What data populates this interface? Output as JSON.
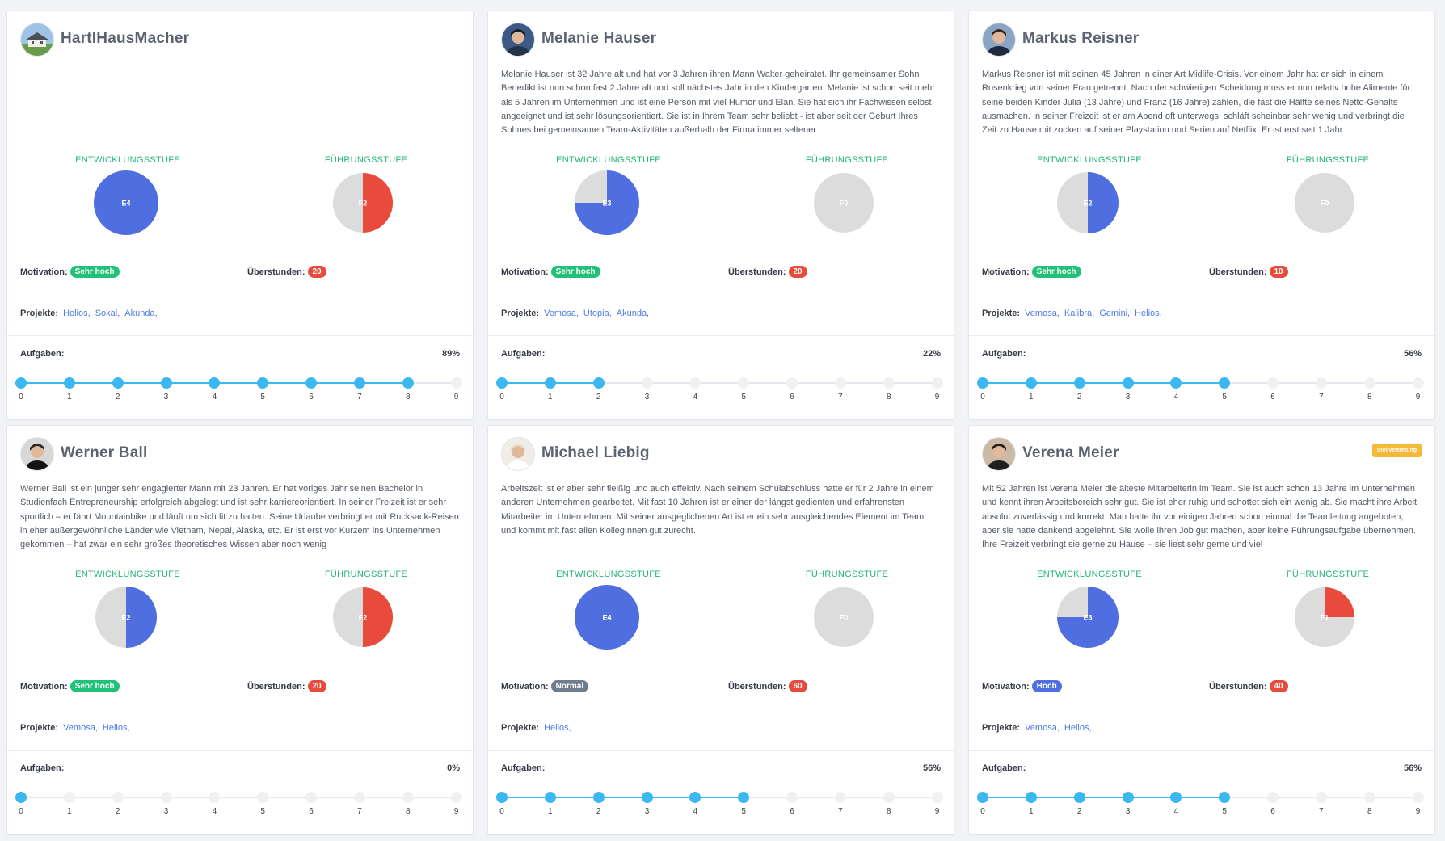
{
  "labels": {
    "entwicklung": "ENTWICKLUNGSSTUFE",
    "fuehrung": "FÜHRUNGSSTUFE",
    "motivation": "Motivation:",
    "ueberstunden": "Überstunden:",
    "projekte": "Projekte:",
    "aufgaben": "Aufgaben:"
  },
  "colors": {
    "entwicklung": "#4f6fe0",
    "fuehrung": "#e84a3b",
    "pie_bg": "#dcdcdc",
    "sehr_hoch": "#22c178",
    "hoch": "#4f6fe0",
    "normal": "#6f7d8e",
    "overtime": "#e84a3b"
  },
  "ticks": [
    "0",
    "1",
    "2",
    "3",
    "4",
    "5",
    "6",
    "7",
    "8",
    "9"
  ],
  "cards": [
    {
      "name": "HartlHausMacher",
      "avatar": "house-avatar",
      "description": "",
      "badge": "",
      "entwicklung": {
        "label": "E4",
        "fraction": 1.0
      },
      "fuehrung": {
        "label": "F2",
        "fraction": 0.5
      },
      "motivation": {
        "text": "Sehr hoch",
        "level": "sehr_hoch"
      },
      "ueberstunden": "20",
      "projekte": [
        "Helios,",
        "Sokal,",
        "Akunda,"
      ],
      "aufgaben_pct": "89%",
      "aufgaben_done": 8
    },
    {
      "name": "Melanie Hauser",
      "avatar": "person-avatar",
      "description": "Melanie Hauser ist 32 Jahre alt und hat vor 3 Jahren ihren Mann Walter geheiratet. Ihr gemeinsamer Sohn Benedikt ist nun schon fast 2 Jahre alt und soll nächstes Jahr in den Kindergarten. Melanie ist schon seit mehr als 5 Jahren im Unternehmen und ist eine Person mit viel Humor und Elan. Sie hat sich ihr Fachwissen selbst angeeignet und ist sehr lösungsorientiert. Sie ist in Ihrem Team sehr beliebt - ist aber seit der Geburt Ihres Sohnes bei gemeinsamen Team-Aktivitäten außerhalb der Firma immer seltener",
      "badge": "",
      "entwicklung": {
        "label": "E3",
        "fraction": 0.75
      },
      "fuehrung": {
        "label": "F0",
        "fraction": 0.0
      },
      "motivation": {
        "text": "Sehr hoch",
        "level": "sehr_hoch"
      },
      "ueberstunden": "20",
      "projekte": [
        "Vemosa,",
        "Utopia,",
        "Akunda,"
      ],
      "aufgaben_pct": "22%",
      "aufgaben_done": 2
    },
    {
      "name": "Markus Reisner",
      "avatar": "person-avatar",
      "description": "Markus Reisner ist mit seinen 45 Jahren in einer Art Midlife-Crisis. Vor einem Jahr hat er sich in einem Rosenkrieg von seiner Frau getrennt. Nach der schwierigen Scheidung muss er nun relativ hohe Alimente für seine beiden Kinder Julia (13 Jahre) und Franz (16 Jahre) zahlen, die fast die Hälfte seines Netto-Gehalts ausmachen. In seiner Freizeit ist er am Abend oft unterwegs, schläft scheinbar sehr wenig und verbringt die Zeit zu Hause mit zocken auf seiner Playstation und Serien auf Netflix. Er ist erst seit 1 Jahr",
      "badge": "",
      "entwicklung": {
        "label": "E2",
        "fraction": 0.5
      },
      "fuehrung": {
        "label": "F0",
        "fraction": 0.0
      },
      "motivation": {
        "text": "Sehr hoch",
        "level": "sehr_hoch"
      },
      "ueberstunden": "10",
      "projekte": [
        "Vemosa,",
        "Kalibra,",
        "Gemini,",
        "Helios,"
      ],
      "aufgaben_pct": "56%",
      "aufgaben_done": 5
    },
    {
      "name": "Werner Ball",
      "avatar": "person-avatar",
      "description": "Werner Ball ist ein junger sehr engagierter Mann mit 23 Jahren. Er hat voriges Jahr seinen Bachelor in Studienfach Entrepreneurship erfolgreich abgelegt und ist sehr karriereorientiert. In seiner Freizeit ist er sehr sportlich – er fährt Mountainbike und läuft um sich fit zu halten. Seine Urlaube verbringt er mit Rucksack-Reisen in eher außergewöhnliche Länder wie Vietnam, Nepal, Alaska, etc. Er ist erst vor Kurzem ins Unternehmen gekommen – hat zwar ein sehr großes theoretisches Wissen aber noch wenig",
      "badge": "",
      "entwicklung": {
        "label": "E2",
        "fraction": 0.5
      },
      "fuehrung": {
        "label": "F2",
        "fraction": 0.5
      },
      "motivation": {
        "text": "Sehr hoch",
        "level": "sehr_hoch"
      },
      "ueberstunden": "20",
      "projekte": [
        "Vemosa,",
        "Helios,"
      ],
      "aufgaben_pct": "0%",
      "aufgaben_done": 0
    },
    {
      "name": "Michael Liebig",
      "avatar": "person-avatar",
      "description": "Arbeitszeit ist er aber sehr fleißig und auch effektiv. Nach seinem Schulabschluss hatte er für 2 Jahre in einem anderen Unternehmen gearbeitet. Mit fast 10 Jahren ist er einer der längst gedienten und erfahrensten Mitarbeiter im Unternehmen. Mit seiner ausgeglichenen Art ist er ein sehr ausgleichendes Element im Team und kommt mit fast allen KollegInnen gut zurecht.",
      "badge": "",
      "entwicklung": {
        "label": "E4",
        "fraction": 1.0
      },
      "fuehrung": {
        "label": "F0",
        "fraction": 0.0
      },
      "motivation": {
        "text": "Normal",
        "level": "normal"
      },
      "ueberstunden": "60",
      "projekte": [
        "Helios,"
      ],
      "aufgaben_pct": "56%",
      "aufgaben_done": 5
    },
    {
      "name": "Verena Meier",
      "avatar": "person-avatar",
      "description": "Mit 52 Jahren ist Verena Meier die älteste Mitarbeiterin im Team. Sie ist auch schon 13 Jahre im Unternehmen und kennt ihren Arbeitsbereich sehr gut. Sie ist eher ruhig und schottet sich ein wenig ab. Sie macht ihre Arbeit absolut zuverlässig und korrekt. Man hatte ihr vor einigen Jahren schon einmal die Teamleitung angeboten, aber sie hatte dankend abgelehnt. Sie wolle ihren Job gut machen, aber keine Führungsaufgabe übernehmen. Ihre Freizeit verbringt sie gerne zu Hause – sie liest sehr gerne und viel",
      "badge": "Stellvertretung",
      "entwicklung": {
        "label": "E3",
        "fraction": 0.75
      },
      "fuehrung": {
        "label": "F1",
        "fraction": 0.25
      },
      "motivation": {
        "text": "Hoch",
        "level": "hoch"
      },
      "ueberstunden": "40",
      "projekte": [
        "Vemosa,",
        "Helios,"
      ],
      "aufgaben_pct": "56%",
      "aufgaben_done": 5
    }
  ]
}
